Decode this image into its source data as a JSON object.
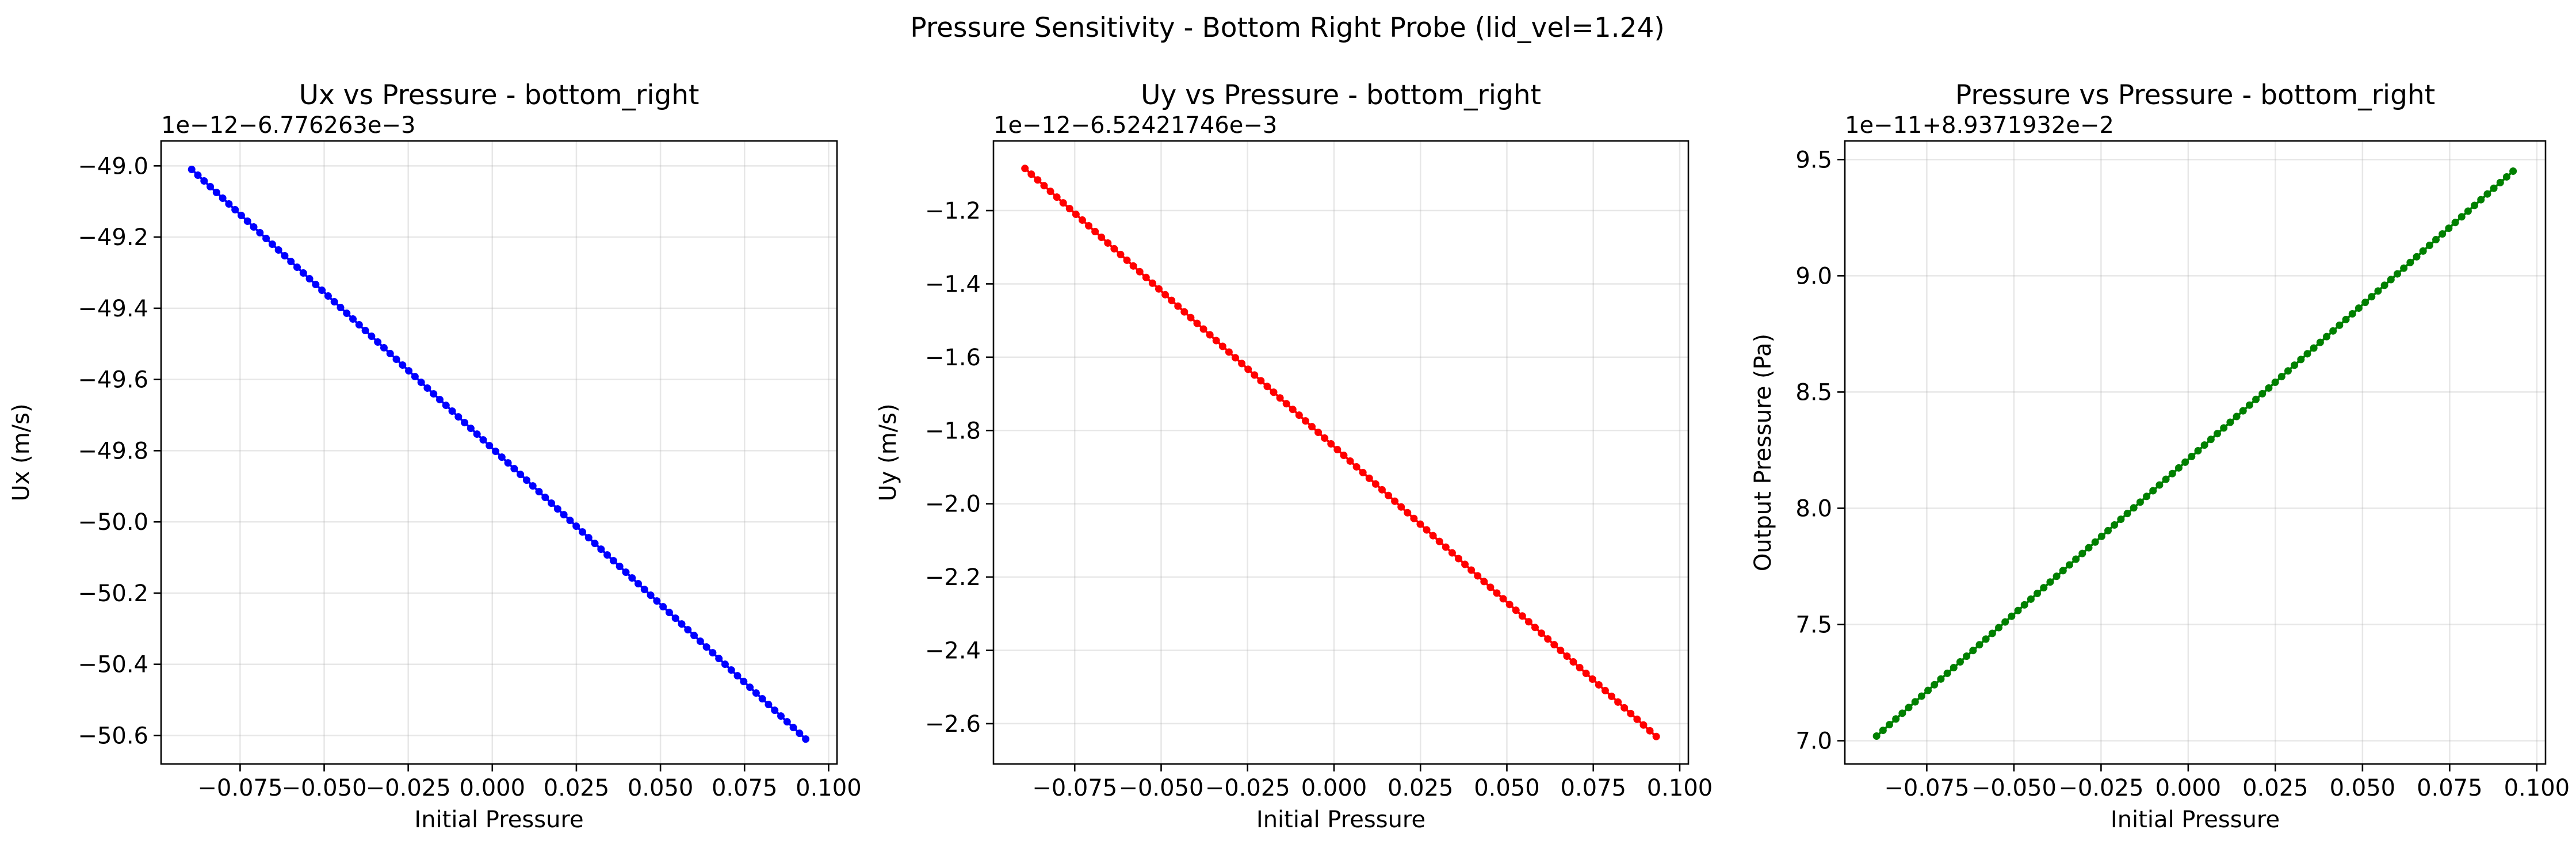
{
  "figure": {
    "suptitle": "Pressure Sensitivity - Bottom Right Probe (lid_vel=1.24)"
  },
  "chart_data": [
    {
      "type": "line",
      "title": "Ux vs Pressure - bottom_right",
      "xlabel": "Initial Pressure",
      "ylabel": "Ux (m/s)",
      "y_offset_text": "1e−12−6.776263e−3",
      "xlim": [
        -0.0985,
        0.1025
      ],
      "ylim": [
        -50.68,
        -48.93
      ],
      "x_ticks": [
        -0.075,
        -0.05,
        -0.025,
        0.0,
        0.025,
        0.05,
        0.075,
        0.1
      ],
      "x_tick_labels": [
        "−0.075",
        "−0.050",
        "−0.025",
        "0.000",
        "0.025",
        "0.050",
        "0.075",
        "0.100"
      ],
      "y_ticks": [
        -49.0,
        -49.2,
        -49.4,
        -49.6,
        -49.8,
        -50.0,
        -50.2,
        -50.4,
        -50.6
      ],
      "y_tick_labels": [
        "−49.0",
        "−49.2",
        "−49.4",
        "−49.6",
        "−49.8",
        "−50.0",
        "−50.2",
        "−50.4",
        "−50.6"
      ],
      "grid": true,
      "color": "#0000ff",
      "marker": "circle",
      "series": [
        {
          "x_start": -0.0894,
          "x_end": 0.0932,
          "y_start": -49.01,
          "y_end": -50.61,
          "n_points": 100
        }
      ]
    },
    {
      "type": "line",
      "title": "Uy vs Pressure - bottom_right",
      "xlabel": "Initial Pressure",
      "ylabel": "Uy (m/s)",
      "y_offset_text": "1e−12−6.52421746e−3",
      "xlim": [
        -0.0985,
        0.1025
      ],
      "ylim": [
        -2.71,
        -1.01
      ],
      "x_ticks": [
        -0.075,
        -0.05,
        -0.025,
        0.0,
        0.025,
        0.05,
        0.075,
        0.1
      ],
      "x_tick_labels": [
        "−0.075",
        "−0.050",
        "−0.025",
        "0.000",
        "0.025",
        "0.050",
        "0.075",
        "0.100"
      ],
      "y_ticks": [
        -1.2,
        -1.4,
        -1.6,
        -1.8,
        -2.0,
        -2.2,
        -2.4,
        -2.6
      ],
      "y_tick_labels": [
        "−1.2",
        "−1.4",
        "−1.6",
        "−1.8",
        "−2.0",
        "−2.2",
        "−2.4",
        "−2.6"
      ],
      "grid": true,
      "color": "#ff0000",
      "marker": "circle",
      "series": [
        {
          "x_start": -0.0894,
          "x_end": 0.0932,
          "y_start": -1.085,
          "y_end": -2.635,
          "n_points": 100
        }
      ]
    },
    {
      "type": "line",
      "title": "Pressure vs Pressure - bottom_right",
      "xlabel": "Initial Pressure",
      "ylabel": "Output Pressure (Pa)",
      "y_offset_text": "1e−11+8.9371932e−2",
      "xlim": [
        -0.0985,
        0.1025
      ],
      "ylim": [
        6.9,
        9.58
      ],
      "x_ticks": [
        -0.075,
        -0.05,
        -0.025,
        0.0,
        0.025,
        0.05,
        0.075,
        0.1
      ],
      "x_tick_labels": [
        "−0.075",
        "−0.050",
        "−0.025",
        "0.000",
        "0.025",
        "0.050",
        "0.075",
        "0.100"
      ],
      "y_ticks": [
        7.0,
        7.5,
        8.0,
        8.5,
        9.0,
        9.5
      ],
      "y_tick_labels": [
        "7.0",
        "7.5",
        "8.0",
        "8.5",
        "9.0",
        "9.5"
      ],
      "grid": true,
      "color": "#008000",
      "marker": "circle",
      "series": [
        {
          "x_start": -0.0894,
          "x_end": 0.0932,
          "y_start": 7.02,
          "y_end": 9.45,
          "n_points": 100
        }
      ]
    }
  ]
}
